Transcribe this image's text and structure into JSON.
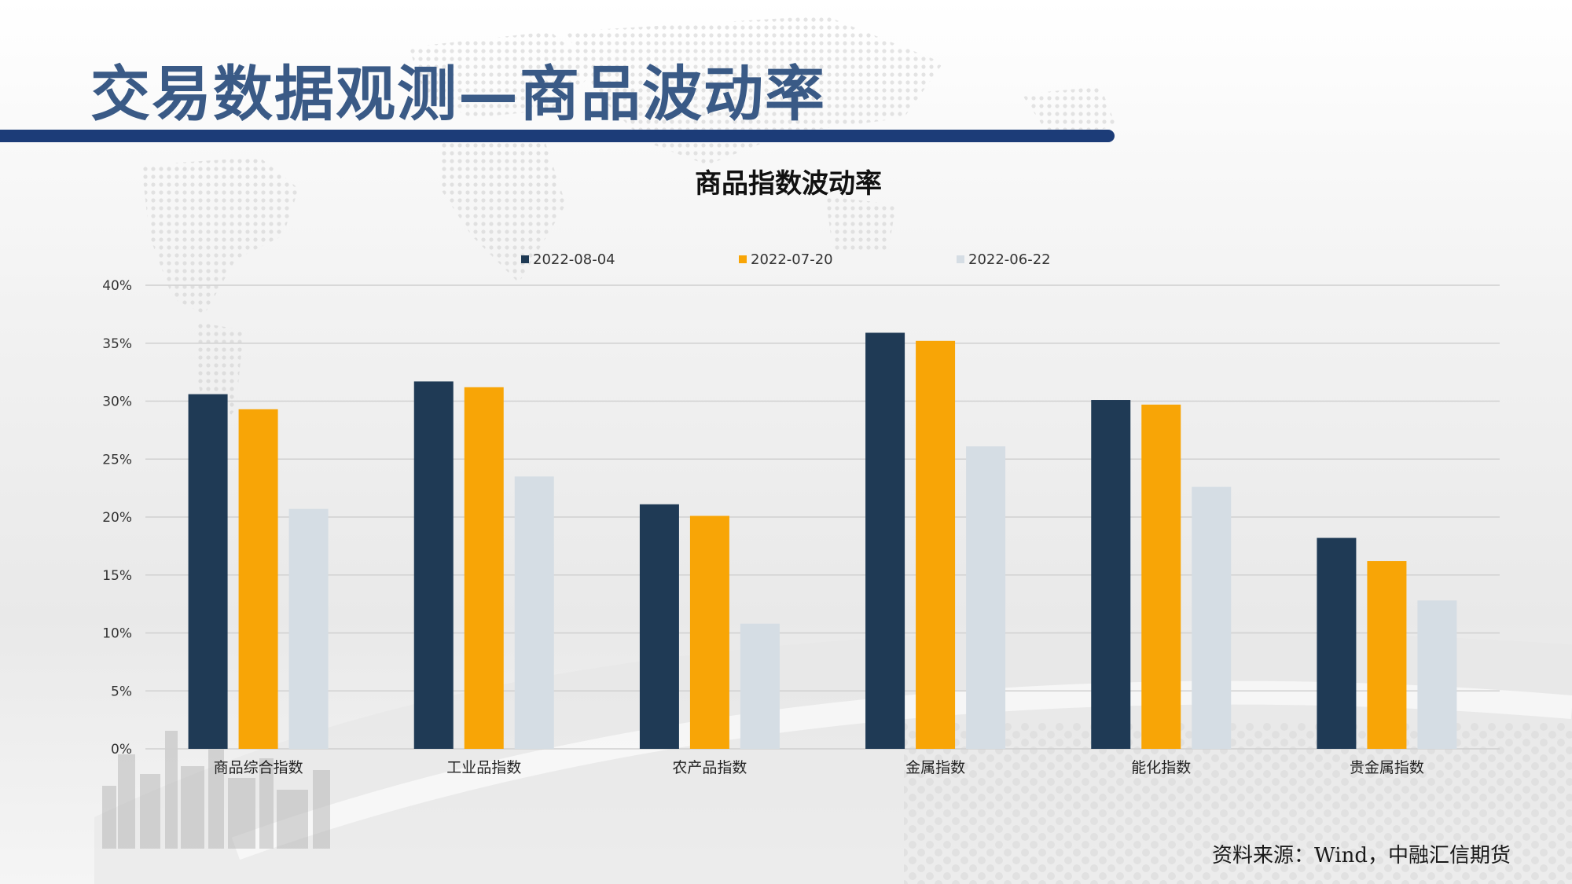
{
  "slide": {
    "title": "交易数据观测—商品波动率",
    "source": "资料来源：Wind，中融汇信期货"
  },
  "colors": {
    "brand": "#3a5a86",
    "bar_header": "#1c3c78",
    "series1": "#1f3a55",
    "series2": "#f8a506",
    "series3": "#d5dde4"
  },
  "chart_data": {
    "type": "bar",
    "title": "商品指数波动率",
    "categories": [
      "商品综合指数",
      "工业品指数",
      "农产品指数",
      "金属指数",
      "能化指数",
      "贵金属指数"
    ],
    "series": [
      {
        "name": "2022-08-04",
        "color": "#1f3a55",
        "values": [
          30.6,
          31.7,
          21.1,
          35.9,
          30.1,
          18.2
        ]
      },
      {
        "name": "2022-07-20",
        "color": "#f8a506",
        "values": [
          29.3,
          31.2,
          20.1,
          35.2,
          29.7,
          16.2
        ]
      },
      {
        "name": "2022-06-22",
        "color": "#d5dde4",
        "values": [
          20.7,
          23.5,
          10.8,
          26.1,
          22.6,
          12.8
        ]
      }
    ],
    "ylim": [
      0,
      40
    ],
    "yticks": [
      "0%",
      "5%",
      "10%",
      "15%",
      "20%",
      "25%",
      "30%",
      "35%",
      "40%"
    ],
    "grid": true,
    "legend": "top"
  }
}
